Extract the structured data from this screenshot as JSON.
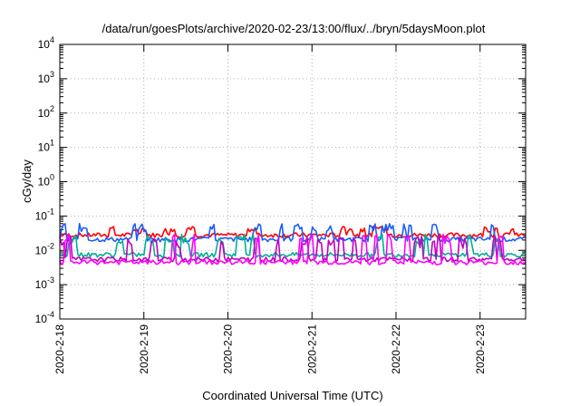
{
  "chart_data": {
    "type": "line",
    "title": "/data/run/goesPlots/archive/2020-02-23/13:00/flux/../bryn/5daysMoon.plot",
    "xlabel": "Coordinated Universal Time (UTC)",
    "ylabel": "cGy/day",
    "yscale": "log",
    "ylim": [
      0.0001,
      10000
    ],
    "xlim": [
      "2020-02-18",
      "2020-02-23 13:00"
    ],
    "x_ticks": [
      "2020-2-18",
      "2020-2-19",
      "2020-2-20",
      "2020-2-21",
      "2020-2-22",
      "2020-2-23"
    ],
    "y_ticks": [
      {
        "base": "10",
        "exp": "-4"
      },
      {
        "base": "10",
        "exp": "-3"
      },
      {
        "base": "10",
        "exp": "-2"
      },
      {
        "base": "10",
        "exp": "-1"
      },
      {
        "base": "10",
        "exp": "0"
      },
      {
        "base": "10",
        "exp": "1"
      },
      {
        "base": "10",
        "exp": "2"
      },
      {
        "base": "10",
        "exp": "3"
      },
      {
        "base": "10",
        "exp": "4"
      }
    ],
    "grid": true,
    "series": [
      {
        "color": "#ff0000",
        "baseline": 0.028,
        "spike": 0.05
      },
      {
        "color": "#1a5cff",
        "baseline": 0.021,
        "spike": 0.06
      },
      {
        "color": "#00b090",
        "baseline": 0.0075,
        "spike": 0.03
      },
      {
        "color": "#c000c0",
        "baseline": 0.0055,
        "spike": 0.025
      },
      {
        "color": "#ff00ff",
        "baseline": 0.0045,
        "spike": 0.03
      }
    ]
  }
}
